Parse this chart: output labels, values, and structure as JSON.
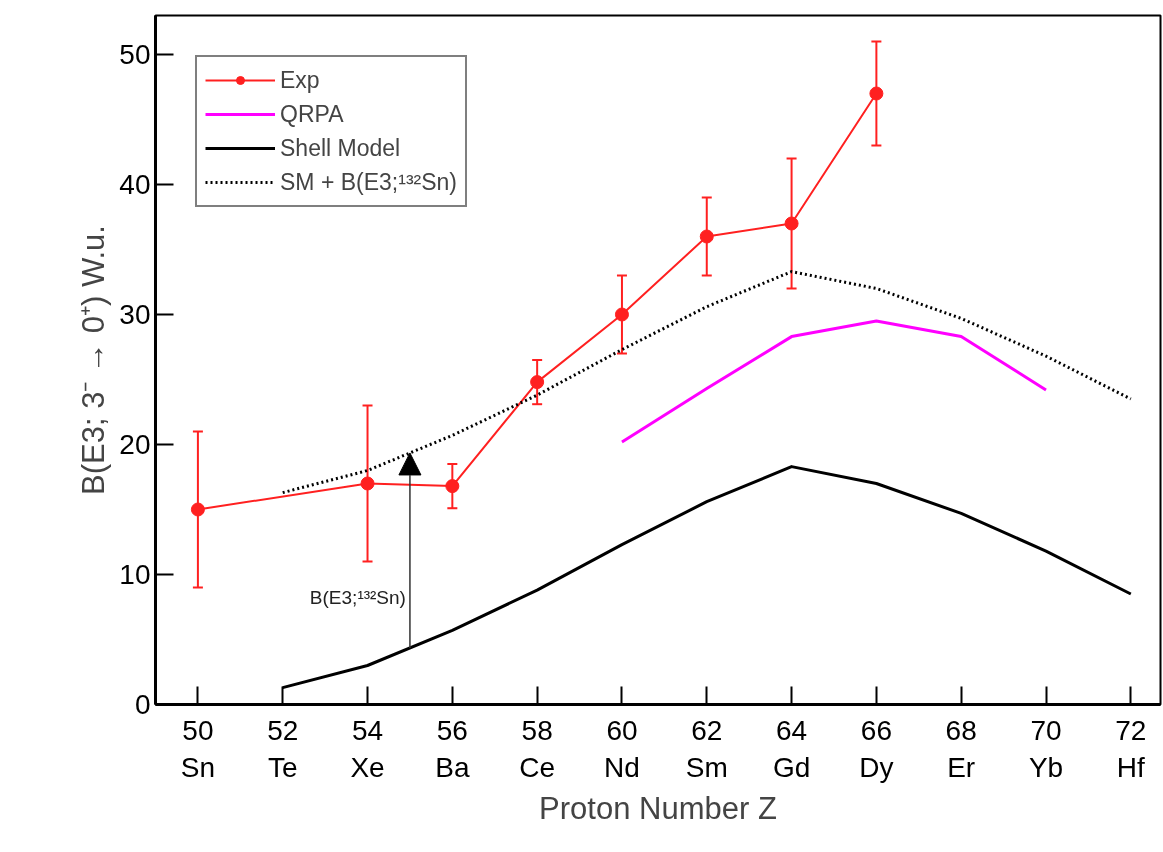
{
  "chart_data": {
    "type": "line",
    "xlabel": "Proton Number Z",
    "ylabel": "B(E3; 3⁻ → 0⁺) W.u.",
    "xlim": [
      49,
      72.7
    ],
    "ylim": [
      0,
      53
    ],
    "xticks": [
      {
        "value": 50,
        "label": "50\nSn"
      },
      {
        "value": 52,
        "label": "52\nTe"
      },
      {
        "value": 54,
        "label": "54\nXe"
      },
      {
        "value": 56,
        "label": "56\nBa"
      },
      {
        "value": 58,
        "label": "58\nCe"
      },
      {
        "value": 60,
        "label": "60\nNd"
      },
      {
        "value": 62,
        "label": "62\nSm"
      },
      {
        "value": 64,
        "label": "64\nGd"
      },
      {
        "value": 66,
        "label": "66\nDy"
      },
      {
        "value": 68,
        "label": "68\nEr"
      },
      {
        "value": 70,
        "label": "70\nYb"
      },
      {
        "value": 72,
        "label": "72\nHf"
      }
    ],
    "yticks": [
      0,
      10,
      20,
      30,
      40,
      50
    ],
    "grid": false,
    "legend": "top left",
    "series": [
      {
        "name": "Exp",
        "color": "#ff2020",
        "marker": "circle",
        "line_style": "solid",
        "x": [
          50,
          54,
          56,
          58,
          60,
          62,
          64,
          66
        ],
        "values": [
          15,
          17,
          16.8,
          24.8,
          30,
          36,
          37,
          47
        ],
        "errors": [
          6,
          6,
          1.7,
          1.7,
          3,
          3,
          5,
          4
        ]
      },
      {
        "name": "QRPA",
        "color": "#ff00ff",
        "marker": "none",
        "line_style": "solid",
        "x": [
          60,
          62,
          64,
          66,
          68,
          70
        ],
        "values": [
          20.2,
          24.3,
          28.3,
          29.5,
          28.3,
          24.2
        ]
      },
      {
        "name": "Shell Model",
        "color": "#000000",
        "marker": "none",
        "line_style": "solid",
        "x": [
          52,
          54,
          56,
          58,
          60,
          62,
          64,
          66,
          68,
          70,
          72
        ],
        "values": [
          1.3,
          3.0,
          5.7,
          8.8,
          12.3,
          15.6,
          18.3,
          17.0,
          14.7,
          11.8,
          8.5
        ]
      },
      {
        "name": "SM + B(E3;¹³²Sn)",
        "color": "#000000",
        "marker": "none",
        "line_style": "dotted",
        "x": [
          52,
          54,
          56,
          58,
          60,
          62,
          64,
          66,
          68,
          70,
          72
        ],
        "values": [
          16.3,
          18.0,
          20.7,
          23.8,
          27.3,
          30.6,
          33.3,
          32.0,
          29.7,
          26.8,
          23.5
        ]
      }
    ],
    "annotations": [
      "B(E3;¹³²Sn)"
    ]
  }
}
